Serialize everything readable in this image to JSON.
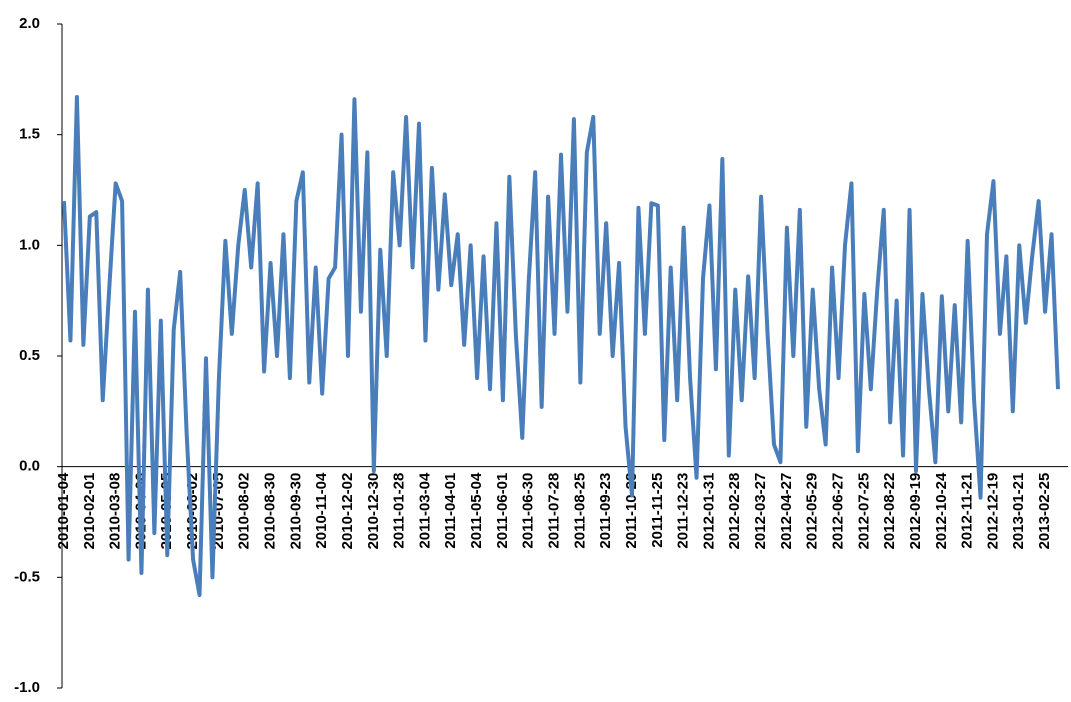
{
  "chart_data": {
    "type": "line",
    "color": "#4a7ebb",
    "ylim": [
      -1,
      2
    ],
    "yticks": [
      {
        "value": -1,
        "label": "-1.0"
      },
      -0.5,
      {
        "value": 0,
        "label": "0.0"
      },
      0.5,
      {
        "value": 1,
        "label": "1.0"
      },
      1.5,
      {
        "value": 2,
        "label": "2.0"
      }
    ],
    "categories": [
      "2010-01-04",
      null,
      null,
      null,
      "2010-02-01",
      null,
      null,
      null,
      "2010-03-08",
      null,
      null,
      null,
      "2010-04-06",
      null,
      null,
      null,
      "2010-05-05",
      null,
      null,
      null,
      "2010-06-02",
      null,
      null,
      null,
      "2010-07-05",
      null,
      null,
      null,
      "2010-08-02",
      null,
      null,
      null,
      "2010-08-30",
      null,
      null,
      null,
      "2010-09-30",
      null,
      null,
      null,
      "2010-11-04",
      null,
      null,
      null,
      "2010-12-02",
      null,
      null,
      null,
      "2010-12-30",
      null,
      null,
      null,
      "2011-01-28",
      null,
      null,
      null,
      "2011-03-04",
      null,
      null,
      null,
      "2011-04-01",
      null,
      null,
      null,
      "2011-05-04",
      null,
      null,
      null,
      "2011-06-01",
      null,
      null,
      null,
      "2011-06-30",
      null,
      null,
      null,
      "2011-07-28",
      null,
      null,
      null,
      "2011-08-25",
      null,
      null,
      null,
      "2011-09-23",
      null,
      null,
      null,
      "2011-10-28",
      null,
      null,
      null,
      "2011-11-25",
      null,
      null,
      null,
      "2011-12-23",
      null,
      null,
      null,
      "2012-01-31",
      null,
      null,
      null,
      "2012-02-28",
      null,
      null,
      null,
      "2012-03-27",
      null,
      null,
      null,
      "2012-04-27",
      null,
      null,
      null,
      "2012-05-29",
      null,
      null,
      null,
      "2012-06-27",
      null,
      null,
      null,
      "2012-07-25",
      null,
      null,
      null,
      "2012-08-22",
      null,
      null,
      null,
      "2012-09-19",
      null,
      null,
      null,
      "2012-10-24",
      null,
      null,
      null,
      "2012-11-21",
      null,
      null,
      null,
      "2012-12-19",
      null,
      null,
      null,
      "2013-01-21",
      null,
      null,
      null,
      "2013-02-25",
      null,
      null
    ],
    "values": [
      1.2,
      0.57,
      1.67,
      0.55,
      1.13,
      1.15,
      0.3,
      0.8,
      1.28,
      1.2,
      -0.42,
      0.7,
      -0.48,
      0.8,
      -0.3,
      0.66,
      -0.4,
      0.62,
      0.88,
      0.15,
      -0.42,
      -0.58,
      0.49,
      -0.5,
      0.4,
      1.02,
      0.6,
      1.0,
      1.25,
      0.9,
      1.28,
      0.43,
      0.92,
      0.5,
      1.05,
      0.4,
      1.2,
      1.33,
      0.38,
      0.9,
      0.33,
      0.85,
      0.9,
      1.5,
      0.5,
      1.66,
      0.7,
      1.42,
      -0.02,
      0.98,
      0.5,
      1.33,
      1.0,
      1.58,
      0.9,
      1.55,
      0.57,
      1.35,
      0.8,
      1.23,
      0.82,
      1.05,
      0.55,
      1.0,
      0.4,
      0.95,
      0.35,
      1.1,
      0.3,
      1.31,
      0.6,
      0.13,
      0.84,
      1.33,
      0.27,
      1.22,
      0.6,
      1.41,
      0.7,
      1.57,
      0.38,
      1.42,
      1.58,
      0.6,
      1.1,
      0.5,
      0.92,
      0.18,
      -0.13,
      1.17,
      0.6,
      1.19,
      1.18,
      0.12,
      0.9,
      0.3,
      1.08,
      0.4,
      -0.05,
      0.85,
      1.18,
      0.44,
      1.39,
      0.05,
      0.8,
      0.3,
      0.86,
      0.4,
      1.22,
      0.6,
      0.1,
      0.02,
      1.08,
      0.5,
      1.16,
      0.18,
      0.8,
      0.35,
      0.1,
      0.9,
      0.4,
      1.0,
      1.28,
      0.07,
      0.78,
      0.35,
      0.8,
      1.16,
      0.2,
      0.75,
      0.05,
      1.16,
      -0.02,
      0.78,
      0.35,
      0.02,
      0.77,
      0.25,
      0.73,
      0.2,
      1.02,
      0.3,
      -0.14,
      1.05,
      1.29,
      0.6,
      0.95,
      0.25,
      1.0,
      0.65,
      0.95,
      1.2,
      0.7,
      1.05,
      0.35
    ]
  }
}
